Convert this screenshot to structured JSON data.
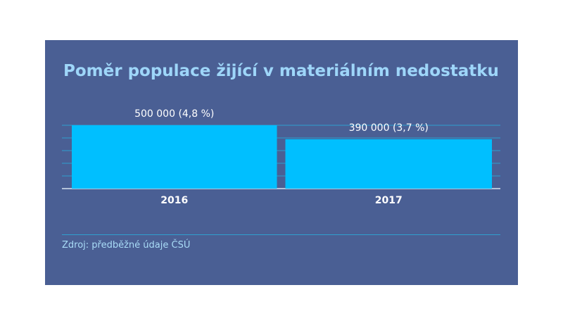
{
  "title": "Poměr populace žijící v materiálním nedostatku",
  "source": "Zdroj: předběžné údaje ČSÚ",
  "colors": {
    "panel": "#4a5f94",
    "bar": "#00bfff",
    "title": "#9ed6f9",
    "gridline": "#2f9fcf"
  },
  "chart_data": {
    "type": "bar",
    "title": "Poměr populace žijící v materiálním nedostatku",
    "categories": [
      "2016",
      "2017"
    ],
    "values": [
      500000,
      390000
    ],
    "value_labels": [
      "500 000 (4,8 %)",
      "390 000 (3,7 %)"
    ],
    "percent_values": [
      4.8,
      3.7
    ],
    "xlabel": "",
    "ylabel": "",
    "ylim": [
      0,
      500000
    ],
    "grid": true,
    "legend": "none"
  }
}
